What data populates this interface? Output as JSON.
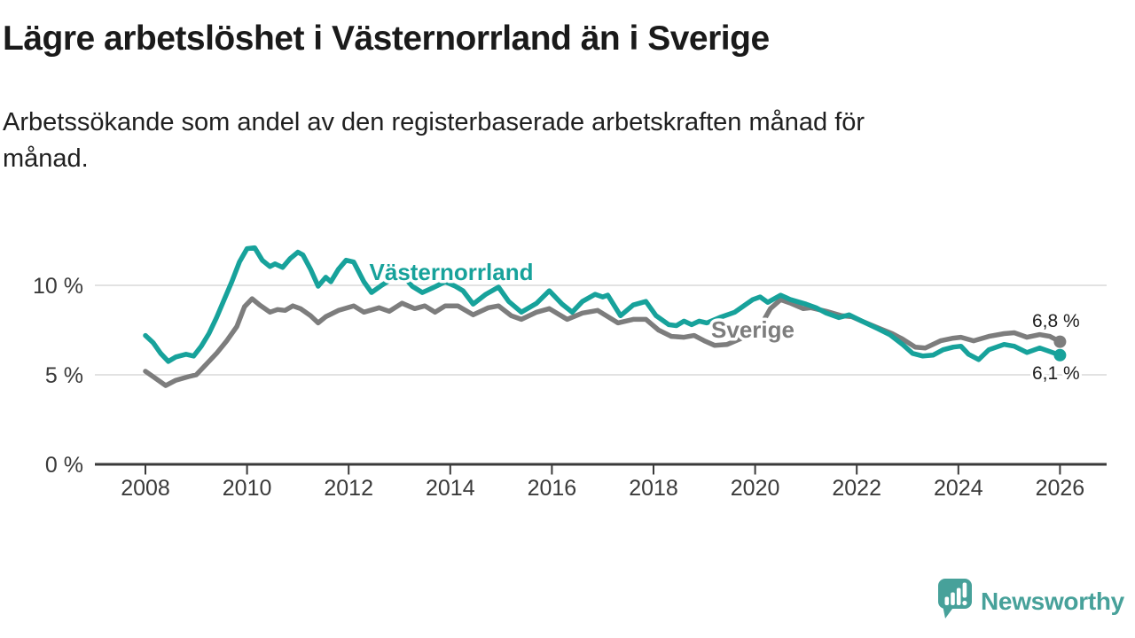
{
  "header": {
    "title": "Lägre arbetslöshet i Västernorrland än i Sverige",
    "subtitle_line1": "Arbetssökande som andel av den registerbaserade arbetskraften månad för",
    "subtitle_line2": "månad."
  },
  "chart_data": {
    "type": "line",
    "title": "Lägre arbetslöshet i Västernorrland än i Sverige",
    "subtitle": "Arbetssökande som andel av den registerbaserade arbetskraften månad för månad.",
    "unit": "%",
    "grid": "horizontal",
    "legend_position": "inline-labels-on-lines",
    "x_axis": {
      "ticks": [
        2008,
        2010,
        2012,
        2014,
        2016,
        2018,
        2020,
        2022,
        2024,
        2026
      ],
      "range_years": [
        2007.0,
        2026.9
      ]
    },
    "y_axis": {
      "ticks": [
        {
          "value": 0,
          "label": "0 %"
        },
        {
          "value": 5,
          "label": "5 %"
        },
        {
          "value": 10,
          "label": "10 %"
        }
      ],
      "range": [
        0,
        12.6
      ]
    },
    "series": [
      {
        "name": "Västernorrland",
        "color": "#17a29b",
        "final_value": 6.1,
        "end_label": "6,1 %",
        "points": [
          [
            2008.0,
            7.2
          ],
          [
            2008.15,
            6.8
          ],
          [
            2008.3,
            6.2
          ],
          [
            2008.45,
            5.75
          ],
          [
            2008.6,
            6.0
          ],
          [
            2008.8,
            6.15
          ],
          [
            2008.95,
            6.05
          ],
          [
            2009.1,
            6.6
          ],
          [
            2009.25,
            7.3
          ],
          [
            2009.4,
            8.2
          ],
          [
            2009.55,
            9.2
          ],
          [
            2009.7,
            10.2
          ],
          [
            2009.85,
            11.3
          ],
          [
            2010.0,
            12.05
          ],
          [
            2010.15,
            12.1
          ],
          [
            2010.3,
            11.4
          ],
          [
            2010.45,
            11.05
          ],
          [
            2010.55,
            11.2
          ],
          [
            2010.7,
            11.0
          ],
          [
            2010.85,
            11.5
          ],
          [
            2011.0,
            11.85
          ],
          [
            2011.1,
            11.7
          ],
          [
            2011.25,
            10.9
          ],
          [
            2011.4,
            9.95
          ],
          [
            2011.55,
            10.45
          ],
          [
            2011.65,
            10.2
          ],
          [
            2011.8,
            10.9
          ],
          [
            2011.95,
            11.4
          ],
          [
            2012.1,
            11.3
          ],
          [
            2012.3,
            10.2
          ],
          [
            2012.45,
            9.6
          ],
          [
            2012.65,
            10.0
          ],
          [
            2012.9,
            10.45
          ],
          [
            2013.05,
            10.6
          ],
          [
            2013.25,
            9.95
          ],
          [
            2013.45,
            9.6
          ],
          [
            2013.65,
            9.85
          ],
          [
            2013.9,
            10.2
          ],
          [
            2014.1,
            9.95
          ],
          [
            2014.25,
            9.7
          ],
          [
            2014.45,
            8.95
          ],
          [
            2014.7,
            9.5
          ],
          [
            2014.95,
            9.9
          ],
          [
            2015.15,
            9.1
          ],
          [
            2015.4,
            8.5
          ],
          [
            2015.7,
            9.0
          ],
          [
            2015.95,
            9.7
          ],
          [
            2016.2,
            8.95
          ],
          [
            2016.4,
            8.5
          ],
          [
            2016.6,
            9.1
          ],
          [
            2016.85,
            9.5
          ],
          [
            2017.0,
            9.35
          ],
          [
            2017.1,
            9.45
          ],
          [
            2017.35,
            8.3
          ],
          [
            2017.6,
            8.9
          ],
          [
            2017.85,
            9.1
          ],
          [
            2018.05,
            8.3
          ],
          [
            2018.3,
            7.8
          ],
          [
            2018.45,
            7.75
          ],
          [
            2018.6,
            8.0
          ],
          [
            2018.75,
            7.8
          ],
          [
            2018.9,
            8.0
          ],
          [
            2019.05,
            7.9
          ],
          [
            2019.3,
            8.2
          ],
          [
            2019.6,
            8.5
          ],
          [
            2019.8,
            8.9
          ],
          [
            2019.95,
            9.2
          ],
          [
            2020.1,
            9.35
          ],
          [
            2020.25,
            9.05
          ],
          [
            2020.5,
            9.45
          ],
          [
            2020.7,
            9.2
          ],
          [
            2021.0,
            8.95
          ],
          [
            2021.2,
            8.75
          ],
          [
            2021.4,
            8.45
          ],
          [
            2021.65,
            8.2
          ],
          [
            2021.85,
            8.35
          ],
          [
            2022.1,
            8.0
          ],
          [
            2022.4,
            7.6
          ],
          [
            2022.65,
            7.25
          ],
          [
            2022.9,
            6.7
          ],
          [
            2023.1,
            6.2
          ],
          [
            2023.3,
            6.05
          ],
          [
            2023.5,
            6.1
          ],
          [
            2023.7,
            6.4
          ],
          [
            2023.9,
            6.55
          ],
          [
            2024.05,
            6.6
          ],
          [
            2024.2,
            6.15
          ],
          [
            2024.4,
            5.85
          ],
          [
            2024.6,
            6.4
          ],
          [
            2024.9,
            6.7
          ],
          [
            2025.1,
            6.6
          ],
          [
            2025.35,
            6.25
          ],
          [
            2025.6,
            6.5
          ],
          [
            2025.8,
            6.3
          ],
          [
            2026.0,
            6.1
          ]
        ]
      },
      {
        "name": "Sverige",
        "color": "#7d7d7d",
        "final_value": 6.8,
        "end_label": "6,8 %",
        "points": [
          [
            2008.0,
            5.2
          ],
          [
            2008.15,
            4.9
          ],
          [
            2008.4,
            4.4
          ],
          [
            2008.6,
            4.7
          ],
          [
            2008.85,
            4.9
          ],
          [
            2009.0,
            5.0
          ],
          [
            2009.2,
            5.6
          ],
          [
            2009.4,
            6.2
          ],
          [
            2009.6,
            6.9
          ],
          [
            2009.8,
            7.7
          ],
          [
            2009.95,
            8.8
          ],
          [
            2010.1,
            9.25
          ],
          [
            2010.25,
            8.9
          ],
          [
            2010.45,
            8.5
          ],
          [
            2010.6,
            8.65
          ],
          [
            2010.75,
            8.6
          ],
          [
            2010.9,
            8.85
          ],
          [
            2011.05,
            8.7
          ],
          [
            2011.25,
            8.3
          ],
          [
            2011.4,
            7.9
          ],
          [
            2011.55,
            8.25
          ],
          [
            2011.8,
            8.6
          ],
          [
            2012.1,
            8.85
          ],
          [
            2012.3,
            8.5
          ],
          [
            2012.6,
            8.75
          ],
          [
            2012.8,
            8.55
          ],
          [
            2013.05,
            9.0
          ],
          [
            2013.3,
            8.7
          ],
          [
            2013.5,
            8.85
          ],
          [
            2013.7,
            8.5
          ],
          [
            2013.9,
            8.85
          ],
          [
            2014.15,
            8.85
          ],
          [
            2014.45,
            8.35
          ],
          [
            2014.75,
            8.75
          ],
          [
            2014.95,
            8.85
          ],
          [
            2015.2,
            8.3
          ],
          [
            2015.4,
            8.1
          ],
          [
            2015.7,
            8.5
          ],
          [
            2015.95,
            8.7
          ],
          [
            2016.3,
            8.1
          ],
          [
            2016.6,
            8.45
          ],
          [
            2016.9,
            8.6
          ],
          [
            2017.3,
            7.9
          ],
          [
            2017.6,
            8.1
          ],
          [
            2017.85,
            8.1
          ],
          [
            2018.1,
            7.5
          ],
          [
            2018.35,
            7.15
          ],
          [
            2018.6,
            7.1
          ],
          [
            2018.8,
            7.2
          ],
          [
            2019.0,
            6.9
          ],
          [
            2019.2,
            6.65
          ],
          [
            2019.45,
            6.7
          ],
          [
            2019.7,
            7.0
          ],
          [
            2019.9,
            7.3
          ],
          [
            2020.1,
            7.7
          ],
          [
            2020.3,
            8.7
          ],
          [
            2020.5,
            9.2
          ],
          [
            2020.7,
            9.0
          ],
          [
            2020.95,
            8.7
          ],
          [
            2021.1,
            8.75
          ],
          [
            2021.4,
            8.55
          ],
          [
            2021.7,
            8.3
          ],
          [
            2021.9,
            8.25
          ],
          [
            2022.1,
            8.0
          ],
          [
            2022.4,
            7.65
          ],
          [
            2022.7,
            7.3
          ],
          [
            2022.9,
            7.0
          ],
          [
            2023.15,
            6.55
          ],
          [
            2023.35,
            6.5
          ],
          [
            2023.65,
            6.9
          ],
          [
            2023.9,
            7.05
          ],
          [
            2024.05,
            7.1
          ],
          [
            2024.3,
            6.9
          ],
          [
            2024.6,
            7.15
          ],
          [
            2024.9,
            7.3
          ],
          [
            2025.1,
            7.35
          ],
          [
            2025.35,
            7.1
          ],
          [
            2025.6,
            7.25
          ],
          [
            2025.8,
            7.15
          ],
          [
            2026.0,
            6.85
          ]
        ]
      }
    ]
  },
  "branding": {
    "logo_text": "Newsworthy",
    "logo_color": "#47a19a",
    "logo_icon": "bar-chart-speech-bubble"
  }
}
